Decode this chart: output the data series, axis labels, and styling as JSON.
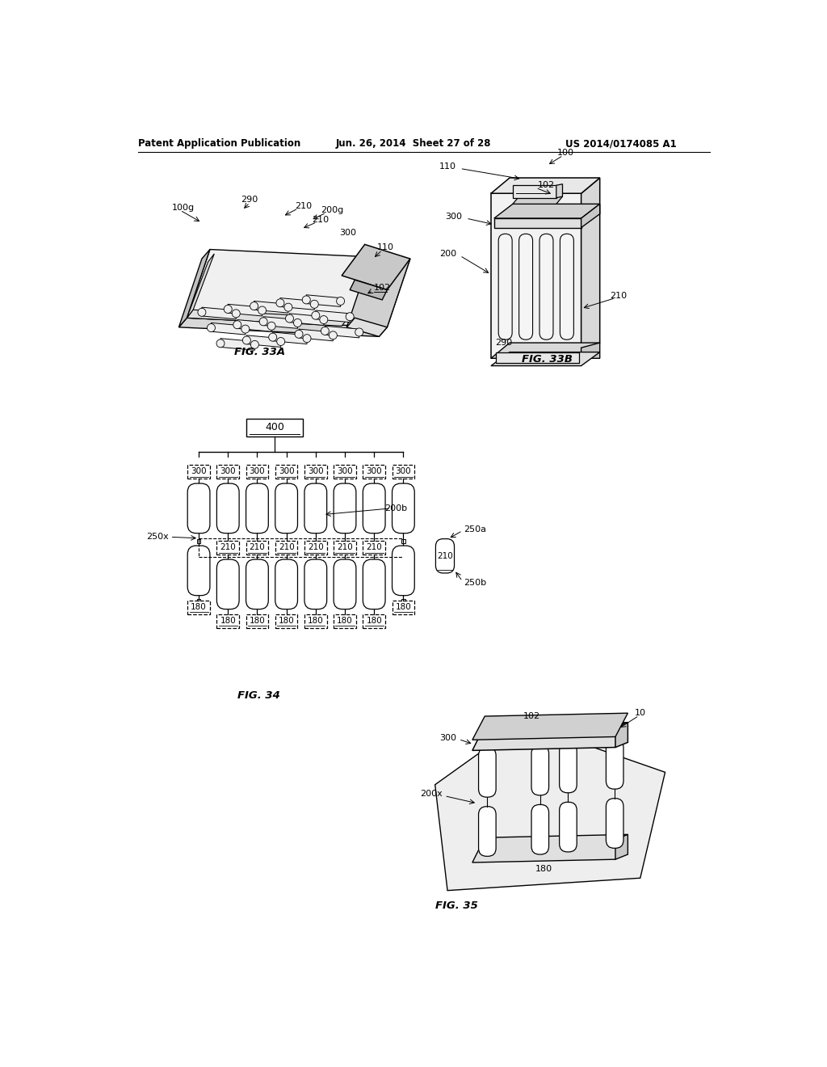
{
  "header_left": "Patent Application Publication",
  "header_mid": "Jun. 26, 2014  Sheet 27 of 28",
  "header_right": "US 2014/0174085 A1",
  "bg_color": "#ffffff",
  "fig33a_label": "FIG. 33A",
  "fig33b_label": "FIG. 33B",
  "fig34_label": "FIG. 34",
  "fig35_label": "FIG. 35"
}
